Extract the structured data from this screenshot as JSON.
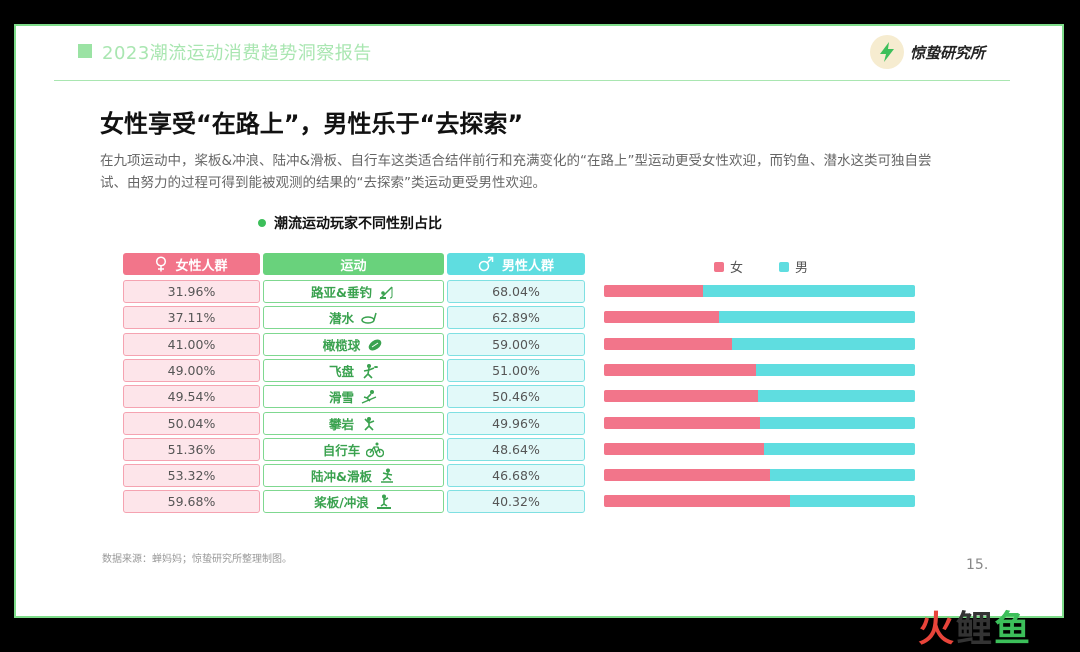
{
  "header": {
    "report_title": "2023潮流运动消费趋势洞察报告",
    "brand": "惊蛰研究所"
  },
  "main_title": "女性享受“在路上”，男性乐于“去探索”",
  "description": "在九项运动中，桨板&冲浪、陆冲&滑板、自行车这类适合结伴前行和充满变化的“在路上”型运动更受女性欢迎，而钓鱼、潜水这类可独自尝试、由努力的过程可得到能被观测的结果的“去探索”类运动更受男性欢迎。",
  "chart_data": {
    "type": "bar",
    "title": "潮流运动玩家不同性别占比",
    "headers": {
      "female": "女性人群",
      "sport": "运动",
      "male": "男性人群"
    },
    "legend": {
      "female": "女",
      "male": "男"
    },
    "colors": {
      "female": "#f2758a",
      "male": "#5fdde0"
    },
    "categories": [
      "路亚&垂钓",
      "潜水",
      "橄榄球",
      "飞盘",
      "滑雪",
      "攀岩",
      "自行车",
      "陆冲&滑板",
      "桨板/冲浪"
    ],
    "series": [
      {
        "name": "女",
        "values": [
          31.96,
          37.11,
          41.0,
          49.0,
          49.54,
          50.04,
          51.36,
          53.32,
          59.68
        ]
      },
      {
        "name": "男",
        "values": [
          68.04,
          62.89,
          59.0,
          51.0,
          50.46,
          49.96,
          48.64,
          46.68,
          40.32
        ]
      }
    ],
    "labels_female": [
      "31.96%",
      "37.11%",
      "41.00%",
      "49.00%",
      "49.54%",
      "50.04%",
      "51.36%",
      "53.32%",
      "59.68%"
    ],
    "labels_male": [
      "68.04%",
      "62.89%",
      "59.00%",
      "51.00%",
      "50.46%",
      "49.96%",
      "48.64%",
      "46.68%",
      "40.32%"
    ],
    "sport_icons": [
      "fishing-icon",
      "snorkel-icon",
      "rugby-ball-icon",
      "frisbee-icon",
      "ski-icon",
      "climbing-icon",
      "bicycle-icon",
      "skateboard-icon",
      "surf-icon"
    ],
    "stacked": true
  },
  "source": "数据来源：蝉妈妈；惊蛰研究所整理制图。",
  "page_number": "15.",
  "watermark": "火鲤鱼"
}
